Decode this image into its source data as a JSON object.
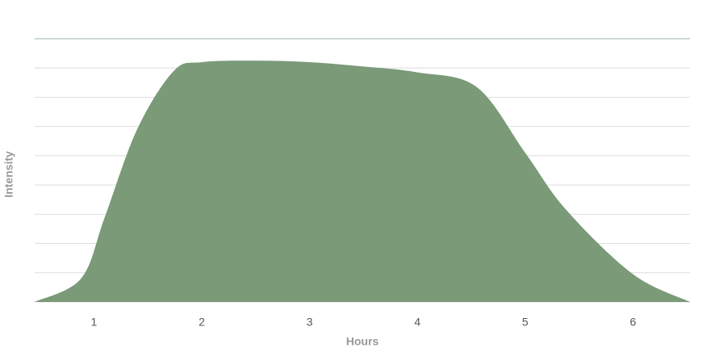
{
  "chart_data": {
    "type": "area",
    "x_label": "Hours",
    "y_label": "Intensity",
    "x": [
      0.45,
      0.88,
      1.1,
      1.4,
      1.74,
      2.0,
      2.5,
      3.0,
      3.5,
      4.0,
      4.55,
      5.0,
      5.38,
      6.0,
      6.53
    ],
    "values": [
      0,
      0.8,
      2.9,
      5.9,
      7.9,
      8.2,
      8.25,
      8.2,
      8.05,
      7.85,
      7.35,
      5.1,
      3.15,
      0.95,
      0
    ],
    "color": "#7a9a78",
    "xlim": [
      0.45,
      6.53
    ],
    "xticks": [
      1,
      2,
      3,
      4,
      5,
      6
    ],
    "ylim": [
      0,
      9
    ],
    "yticks": [
      0,
      1,
      2,
      3,
      4,
      5,
      6,
      7,
      8,
      9
    ],
    "grid": true
  }
}
